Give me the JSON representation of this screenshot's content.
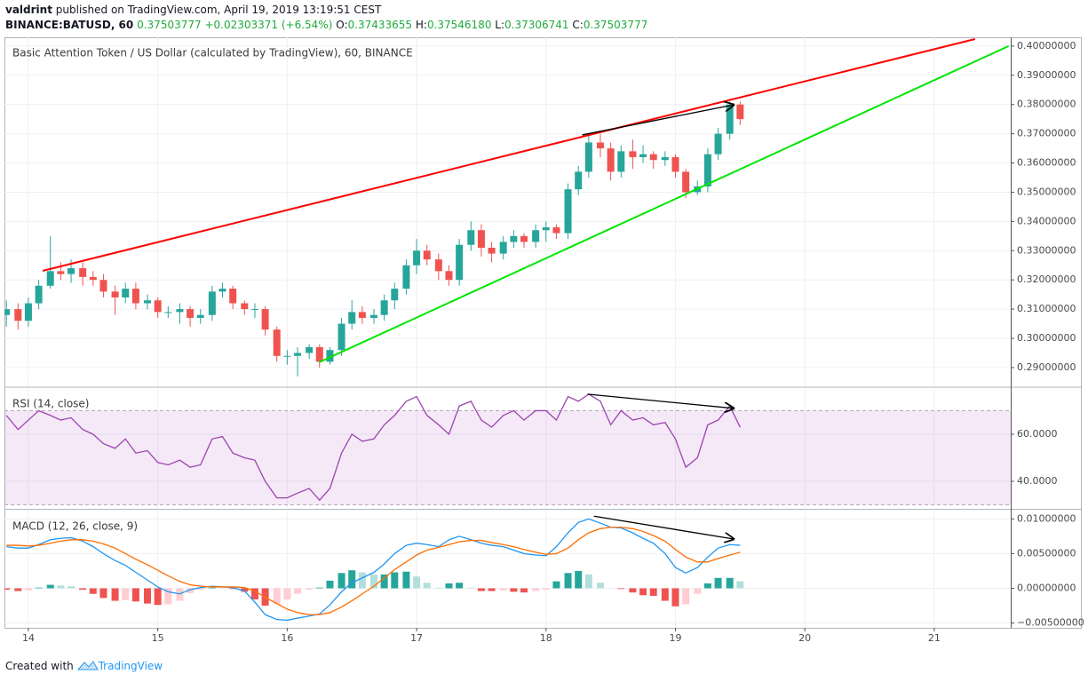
{
  "header": {
    "author": "valdrint",
    "published": "published on TradingView.com, April 19, 2019 13:19:51 CEST",
    "symbol": "BINANCE:BATUSD, 60",
    "last": "0.37503777",
    "change": "+0.02303371 (+6.54%)",
    "ohlc": [
      {
        "label": "O:",
        "value": "0.37433655"
      },
      {
        "label": "H:",
        "value": "0.37546180"
      },
      {
        "label": "L:",
        "value": "0.37306741"
      },
      {
        "label": "C:",
        "value": "0.37503777"
      }
    ]
  },
  "footer": {
    "created": "Created with",
    "brand": "TradingView"
  },
  "chart_data": [
    {
      "type": "candlestick",
      "title": "Basic Attention Token / US Dollar (calculated by TradingView), 60, BINANCE",
      "up_color": "#26a69a",
      "down_color": "#ef5350",
      "grid": true,
      "xlim": [
        13.815,
        21.591
      ],
      "ylim": [
        0.2836,
        0.403
      ],
      "yticks": [
        {
          "value": 0.29,
          "label": "0.29000000"
        },
        {
          "value": 0.3,
          "label": "0.30000000"
        },
        {
          "value": 0.31,
          "label": "0.31000000"
        },
        {
          "value": 0.32,
          "label": "0.32000000"
        },
        {
          "value": 0.33,
          "label": "0.33000000"
        },
        {
          "value": 0.34,
          "label": "0.34000000"
        },
        {
          "value": 0.35,
          "label": "0.35000000"
        },
        {
          "value": 0.36,
          "label": "0.36000000"
        },
        {
          "value": 0.37,
          "label": "0.37000000"
        },
        {
          "value": 0.38,
          "label": "0.38000000"
        },
        {
          "value": 0.39,
          "label": "0.39000000"
        },
        {
          "value": 0.4,
          "label": "0.40000000"
        }
      ],
      "x": [
        13.83,
        13.92,
        14,
        14.08,
        14.17,
        14.25,
        14.33,
        14.42,
        14.5,
        14.58,
        14.67,
        14.75,
        14.83,
        14.92,
        15,
        15.08,
        15.17,
        15.25,
        15.33,
        15.42,
        15.5,
        15.58,
        15.67,
        15.75,
        15.83,
        15.92,
        16,
        16.08,
        16.17,
        16.25,
        16.33,
        16.42,
        16.5,
        16.58,
        16.67,
        16.75,
        16.83,
        16.92,
        17,
        17.08,
        17.17,
        17.25,
        17.33,
        17.42,
        17.5,
        17.58,
        17.67,
        17.75,
        17.83,
        17.92,
        18,
        18.08,
        18.17,
        18.25,
        18.33,
        18.42,
        18.5,
        18.58,
        18.67,
        18.75,
        18.83,
        18.92,
        19,
        19.08,
        19.17,
        19.25,
        19.33,
        19.42,
        19.5
      ],
      "open": [
        0.308,
        0.31,
        0.306,
        0.312,
        0.318,
        0.323,
        0.322,
        0.324,
        0.321,
        0.32,
        0.316,
        0.314,
        0.317,
        0.312,
        0.313,
        0.309,
        0.309,
        0.31,
        0.307,
        0.308,
        0.316,
        0.317,
        0.312,
        0.31,
        0.31,
        0.303,
        0.294,
        0.294,
        0.295,
        0.297,
        0.292,
        0.296,
        0.305,
        0.309,
        0.307,
        0.308,
        0.313,
        0.317,
        0.325,
        0.33,
        0.327,
        0.323,
        0.32,
        0.332,
        0.337,
        0.331,
        0.329,
        0.333,
        0.335,
        0.333,
        0.337,
        0.338,
        0.336,
        0.351,
        0.357,
        0.367,
        0.365,
        0.357,
        0.364,
        0.362,
        0.363,
        0.361,
        0.362,
        0.357,
        0.35,
        0.352,
        0.363,
        0.37,
        0.38
      ],
      "high": [
        0.313,
        0.312,
        0.314,
        0.32,
        0.335,
        0.326,
        0.327,
        0.326,
        0.323,
        0.322,
        0.318,
        0.319,
        0.319,
        0.315,
        0.314,
        0.311,
        0.312,
        0.311,
        0.31,
        0.318,
        0.319,
        0.318,
        0.313,
        0.312,
        0.311,
        0.304,
        0.296,
        0.297,
        0.298,
        0.298,
        0.297,
        0.307,
        0.313,
        0.311,
        0.31,
        0.315,
        0.319,
        0.327,
        0.334,
        0.332,
        0.329,
        0.325,
        0.334,
        0.34,
        0.339,
        0.333,
        0.335,
        0.337,
        0.336,
        0.339,
        0.34,
        0.339,
        0.353,
        0.359,
        0.37,
        0.37,
        0.367,
        0.366,
        0.368,
        0.366,
        0.364,
        0.364,
        0.363,
        0.358,
        0.354,
        0.365,
        0.372,
        0.381,
        0.381
      ],
      "low": [
        0.304,
        0.303,
        0.304,
        0.31,
        0.317,
        0.32,
        0.319,
        0.318,
        0.318,
        0.314,
        0.308,
        0.312,
        0.31,
        0.31,
        0.307,
        0.307,
        0.305,
        0.304,
        0.305,
        0.306,
        0.314,
        0.31,
        0.308,
        0.307,
        0.301,
        0.292,
        0.291,
        0.287,
        0.293,
        0.29,
        0.291,
        0.294,
        0.303,
        0.305,
        0.305,
        0.306,
        0.31,
        0.315,
        0.322,
        0.325,
        0.32,
        0.318,
        0.318,
        0.33,
        0.328,
        0.326,
        0.327,
        0.331,
        0.331,
        0.331,
        0.333,
        0.334,
        0.334,
        0.349,
        0.355,
        0.362,
        0.354,
        0.355,
        0.358,
        0.36,
        0.358,
        0.359,
        0.355,
        0.348,
        0.349,
        0.35,
        0.361,
        0.368,
        0.373
      ],
      "close": [
        0.31,
        0.306,
        0.312,
        0.318,
        0.323,
        0.322,
        0.324,
        0.321,
        0.32,
        0.316,
        0.314,
        0.317,
        0.312,
        0.313,
        0.309,
        0.309,
        0.31,
        0.307,
        0.308,
        0.316,
        0.317,
        0.312,
        0.31,
        0.31,
        0.303,
        0.294,
        0.294,
        0.295,
        0.297,
        0.292,
        0.296,
        0.305,
        0.309,
        0.307,
        0.308,
        0.313,
        0.317,
        0.325,
        0.33,
        0.327,
        0.323,
        0.32,
        0.332,
        0.337,
        0.331,
        0.329,
        0.333,
        0.335,
        0.333,
        0.337,
        0.338,
        0.336,
        0.351,
        0.357,
        0.367,
        0.365,
        0.357,
        0.364,
        0.362,
        0.363,
        0.361,
        0.362,
        0.357,
        0.35,
        0.352,
        0.363,
        0.37,
        0.38,
        0.375
      ],
      "lines": [
        {
          "x": [
            14.11,
            21.315
          ],
          "y": [
            0.3231,
            0.4024
          ],
          "color": "#ff0000"
        },
        {
          "x": [
            16.246,
            21.575
          ],
          "y": [
            0.2918,
            0.4
          ],
          "color": "#00e600"
        },
        {
          "x": [
            18.28,
            19.45
          ],
          "y": [
            0.3696,
            0.3799
          ],
          "color": "#000000",
          "arrow": true
        }
      ]
    },
    {
      "type": "line",
      "title": "RSI (14, close)",
      "color": "#9c44b0",
      "grid": true,
      "bands": [
        30,
        70
      ],
      "xlim": [
        13.815,
        21.591
      ],
      "ylim": [
        28.7,
        79.6
      ],
      "yticks": [
        {
          "value": 40,
          "label": "40.0000"
        },
        {
          "value": 60,
          "label": "60.0000"
        }
      ],
      "x": [
        13.83,
        13.92,
        14,
        14.08,
        14.17,
        14.25,
        14.33,
        14.42,
        14.5,
        14.58,
        14.67,
        14.75,
        14.83,
        14.92,
        15,
        15.08,
        15.17,
        15.25,
        15.33,
        15.42,
        15.5,
        15.58,
        15.67,
        15.75,
        15.83,
        15.92,
        16,
        16.08,
        16.17,
        16.25,
        16.33,
        16.42,
        16.5,
        16.58,
        16.67,
        16.75,
        16.83,
        16.92,
        17,
        17.08,
        17.17,
        17.25,
        17.33,
        17.42,
        17.5,
        17.58,
        17.67,
        17.75,
        17.83,
        17.92,
        18,
        18.08,
        18.17,
        18.25,
        18.33,
        18.42,
        18.5,
        18.58,
        18.67,
        18.75,
        18.83,
        18.92,
        19,
        19.08,
        19.17,
        19.25,
        19.33,
        19.42,
        19.5
      ],
      "values": [
        68,
        62,
        66,
        70,
        68,
        66,
        67,
        62,
        60,
        56,
        54,
        58,
        52,
        53,
        48,
        47,
        49,
        46,
        47,
        58,
        59,
        52,
        50,
        49,
        40,
        33,
        33,
        35,
        37,
        32,
        37,
        52,
        60,
        57,
        58,
        64,
        68,
        74,
        76,
        68,
        64,
        60,
        72,
        74,
        66,
        63,
        68,
        70,
        66,
        70,
        70,
        66,
        76,
        74,
        77,
        74,
        64,
        70,
        66,
        67,
        64,
        65,
        58,
        46,
        50,
        64,
        66,
        72,
        63
      ],
      "lines": [
        {
          "x": [
            18.32,
            19.45
          ],
          "y": [
            77,
            71
          ],
          "color": "#000000",
          "arrow": true
        }
      ]
    },
    {
      "type": "macd",
      "title": "MACD (12, 26, close, 9)",
      "macd_color": "#2196f3",
      "signal_color": "#ff6d00",
      "grid": true,
      "up_color": "#26a69a",
      "up_fade_color": "#b2dfdb",
      "down_color": "#ef5350",
      "down_fade_color": "#ffcdd2",
      "xlim": [
        13.815,
        21.591
      ],
      "ylim": [
        -0.0057,
        0.0112
      ],
      "xticks": [
        14,
        15,
        16,
        17,
        18,
        19,
        20,
        21
      ],
      "yticks": [
        {
          "value": -0.005,
          "label": "−0.00500000"
        },
        {
          "value": 0,
          "label": "0.00000000"
        },
        {
          "value": 0.005,
          "label": "0.00500000"
        },
        {
          "value": 0.01,
          "label": "0.01000000"
        }
      ],
      "x": [
        13.83,
        13.92,
        14,
        14.08,
        14.17,
        14.25,
        14.33,
        14.42,
        14.5,
        14.58,
        14.67,
        14.75,
        14.83,
        14.92,
        15,
        15.08,
        15.17,
        15.25,
        15.33,
        15.42,
        15.5,
        15.58,
        15.67,
        15.75,
        15.83,
        15.92,
        16,
        16.08,
        16.17,
        16.25,
        16.33,
        16.42,
        16.5,
        16.58,
        16.67,
        16.75,
        16.83,
        16.92,
        17,
        17.08,
        17.17,
        17.25,
        17.33,
        17.42,
        17.5,
        17.58,
        17.67,
        17.75,
        17.83,
        17.92,
        18,
        18.08,
        18.17,
        18.25,
        18.33,
        18.42,
        18.5,
        18.58,
        18.67,
        18.75,
        18.83,
        18.92,
        19,
        19.08,
        19.17,
        19.25,
        19.33,
        19.42,
        19.5
      ],
      "macd": [
        0.006,
        0.0058,
        0.0058,
        0.0063,
        0.007,
        0.0072,
        0.0073,
        0.0068,
        0.006,
        0.005,
        0.004,
        0.0033,
        0.0023,
        0.0012,
        0.0002,
        -0.0005,
        -0.0008,
        -0.0002,
        0.0001,
        0.0003,
        0.0002,
        0.0001,
        -0.0004,
        -0.002,
        -0.0038,
        -0.0045,
        -0.0046,
        -0.0043,
        -0.004,
        -0.0037,
        -0.0024,
        -0.0005,
        0.0008,
        0.0015,
        0.0023,
        0.0035,
        0.005,
        0.0062,
        0.0065,
        0.0063,
        0.006,
        0.007,
        0.0075,
        0.007,
        0.0065,
        0.0062,
        0.006,
        0.0055,
        0.005,
        0.0048,
        0.0047,
        0.006,
        0.008,
        0.0095,
        0.01,
        0.0094,
        0.0088,
        0.0087,
        0.008,
        0.0072,
        0.0065,
        0.005,
        0.003,
        0.0022,
        0.003,
        0.0045,
        0.0058,
        0.0063,
        0.0062
      ],
      "signal": [
        0.0062,
        0.0062,
        0.0061,
        0.0062,
        0.0065,
        0.0068,
        0.007,
        0.007,
        0.0068,
        0.0064,
        0.0058,
        0.005,
        0.0042,
        0.0034,
        0.0026,
        0.0018,
        0.001,
        0.0005,
        0.0003,
        0.0002,
        0.0002,
        0.0002,
        0.0001,
        -0.0004,
        -0.0013,
        -0.0022,
        -0.003,
        -0.0035,
        -0.0038,
        -0.0038,
        -0.0035,
        -0.0027,
        -0.0018,
        -0.0008,
        0.0003,
        0.0015,
        0.0027,
        0.0038,
        0.0048,
        0.0055,
        0.0059,
        0.0063,
        0.0067,
        0.0069,
        0.0069,
        0.0066,
        0.0063,
        0.006,
        0.0056,
        0.0052,
        0.0049,
        0.005,
        0.0058,
        0.007,
        0.008,
        0.0086,
        0.0088,
        0.0088,
        0.0086,
        0.0082,
        0.0076,
        0.0068,
        0.0056,
        0.0045,
        0.0038,
        0.0038,
        0.0043,
        0.0048,
        0.0052
      ],
      "histogram": [
        -0.0002,
        -0.0004,
        -0.0003,
        0.0001,
        0.0005,
        0.0004,
        0.0003,
        -0.0002,
        -0.0008,
        -0.0014,
        -0.0018,
        -0.0017,
        -0.0019,
        -0.0022,
        -0.0024,
        -0.0023,
        -0.0018,
        -0.0007,
        -0.0002,
        0.0001,
        0,
        -0.0001,
        -0.0005,
        -0.0016,
        -0.0025,
        -0.0023,
        -0.0016,
        -0.0008,
        -0.0002,
        0.0001,
        0.0011,
        0.0022,
        0.0026,
        0.0023,
        0.002,
        0.002,
        0.0023,
        0.0024,
        0.0017,
        0.0008,
        0.0001,
        0.0007,
        0.0008,
        0.0001,
        -0.0004,
        -0.0004,
        -0.0003,
        -0.0005,
        -0.0006,
        -0.0004,
        -0.0002,
        0.001,
        0.0022,
        0.0025,
        0.002,
        0.0008,
        0,
        -0.0001,
        -0.0006,
        -0.001,
        -0.0011,
        -0.0018,
        -0.0026,
        -0.0023,
        -0.0008,
        0.0007,
        0.0015,
        0.0015,
        0.001
      ],
      "lines": [
        {
          "x": [
            18.37,
            19.45
          ],
          "y": [
            0.0104,
            0.0071
          ],
          "color": "#000000",
          "arrow": true
        }
      ]
    }
  ]
}
